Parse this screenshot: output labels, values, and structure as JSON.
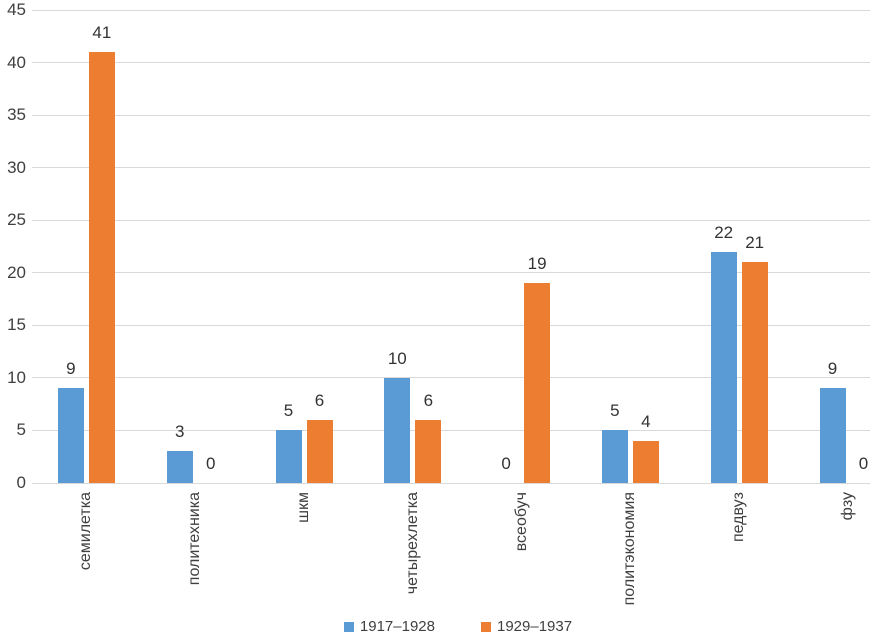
{
  "chart_data": {
    "type": "bar",
    "title": "",
    "categories": [
      "семилетка",
      "политехника",
      "шкм",
      "четырехлетка",
      "всеобуч",
      "политэкономия",
      "педвуз",
      "фзу"
    ],
    "series": [
      {
        "name": "1917–1928",
        "color": "#5B9BD5",
        "values": [
          9,
          3,
          5,
          10,
          0,
          5,
          22,
          9
        ]
      },
      {
        "name": "1929–1937",
        "color": "#ED7D31",
        "values": [
          41,
          0,
          6,
          6,
          19,
          4,
          21,
          0
        ]
      }
    ],
    "ylabel": "",
    "xlabel": "",
    "ylim": [
      0,
      45
    ],
    "ytick_step": 5,
    "ytick_labels": [
      "0",
      "5",
      "10",
      "15",
      "20",
      "25",
      "30",
      "35",
      "40",
      "45"
    ],
    "grid": true,
    "data_labels": true,
    "legend_position": "bottom",
    "colors": {
      "gridline": "#d9d9d9",
      "axis_text": "#404040",
      "data_label_text": "#333333",
      "background": "#ffffff"
    }
  }
}
